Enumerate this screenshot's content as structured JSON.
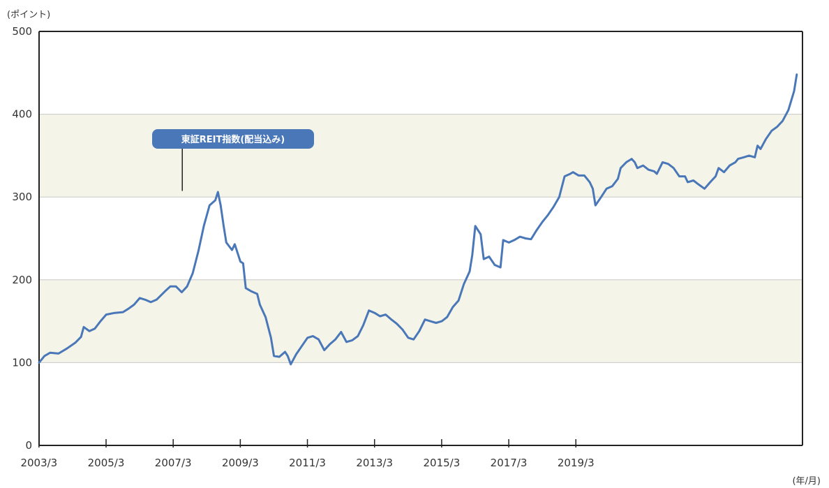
{
  "chart_data": {
    "type": "line",
    "y_unit_label": "(ポイント)",
    "x_unit_label": "(年/月)",
    "ylim": [
      0,
      500
    ],
    "y_ticks": [
      "0",
      "100",
      "200",
      "300",
      "400",
      "500"
    ],
    "x_ticks": [
      "2003/3",
      "2005/3",
      "2007/3",
      "2009/3",
      "2011/3",
      "2013/3",
      "2015/3",
      "2017/3",
      "2019/3"
    ],
    "grid": "horizontal",
    "band_color": "#f4f4e8",
    "line_color": "#4a77b8",
    "annotation": {
      "text": "東証REIT指数(配当込み)",
      "x": 2007.5,
      "y": 304
    },
    "series": [
      {
        "name": "東証REIT指数(配当込み)",
        "points": [
          [
            2003.17,
            100
          ],
          [
            2003.33,
            108
          ],
          [
            2003.5,
            112
          ],
          [
            2003.75,
            111
          ],
          [
            2004.0,
            117
          ],
          [
            2004.25,
            124
          ],
          [
            2004.42,
            131
          ],
          [
            2004.5,
            143
          ],
          [
            2004.67,
            138
          ],
          [
            2004.83,
            141
          ],
          [
            2005.0,
            150
          ],
          [
            2005.17,
            158
          ],
          [
            2005.42,
            160
          ],
          [
            2005.67,
            161
          ],
          [
            2005.83,
            165
          ],
          [
            2006.0,
            170
          ],
          [
            2006.17,
            178
          ],
          [
            2006.33,
            176
          ],
          [
            2006.5,
            173
          ],
          [
            2006.67,
            176
          ],
          [
            2006.92,
            186
          ],
          [
            2007.08,
            192
          ],
          [
            2007.25,
            192
          ],
          [
            2007.42,
            185
          ],
          [
            2007.58,
            192
          ],
          [
            2007.75,
            208
          ],
          [
            2007.92,
            235
          ],
          [
            2008.08,
            265
          ],
          [
            2008.25,
            290
          ],
          [
            2008.42,
            296
          ],
          [
            2008.5,
            306
          ],
          [
            2008.58,
            290
          ],
          [
            2008.67,
            265
          ],
          [
            2008.75,
            245
          ],
          [
            2008.92,
            236
          ],
          [
            2009.0,
            243
          ],
          [
            2009.17,
            222
          ],
          [
            2009.25,
            220
          ],
          [
            2009.33,
            190
          ],
          [
            2009.5,
            186
          ],
          [
            2009.67,
            183
          ],
          [
            2009.75,
            170
          ],
          [
            2009.92,
            155
          ],
          [
            2010.08,
            130
          ],
          [
            2010.17,
            108
          ],
          [
            2010.33,
            107
          ],
          [
            2010.5,
            113
          ],
          [
            2010.58,
            108
          ],
          [
            2010.67,
            98
          ],
          [
            2010.83,
            110
          ],
          [
            2011.0,
            120
          ],
          [
            2011.17,
            130
          ],
          [
            2011.33,
            132
          ],
          [
            2011.5,
            128
          ],
          [
            2011.67,
            115
          ],
          [
            2011.83,
            122
          ],
          [
            2012.0,
            128
          ],
          [
            2012.17,
            137
          ],
          [
            2012.33,
            125
          ],
          [
            2012.5,
            127
          ],
          [
            2012.67,
            132
          ],
          [
            2012.83,
            145
          ],
          [
            2013.0,
            163
          ],
          [
            2013.17,
            160
          ],
          [
            2013.33,
            156
          ],
          [
            2013.5,
            158
          ],
          [
            2013.67,
            152
          ],
          [
            2013.83,
            147
          ],
          [
            2014.0,
            140
          ],
          [
            2014.17,
            130
          ],
          [
            2014.33,
            128
          ],
          [
            2014.5,
            138
          ],
          [
            2014.67,
            152
          ],
          [
            2014.83,
            150
          ],
          [
            2015.0,
            148
          ],
          [
            2015.17,
            150
          ],
          [
            2015.33,
            155
          ],
          [
            2015.5,
            167
          ],
          [
            2015.67,
            175
          ],
          [
            2015.83,
            195
          ],
          [
            2016.0,
            210
          ],
          [
            2016.08,
            230
          ],
          [
            2016.17,
            265
          ],
          [
            2016.33,
            255
          ],
          [
            2016.42,
            225
          ],
          [
            2016.58,
            228
          ],
          [
            2016.75,
            218
          ],
          [
            2016.92,
            215
          ],
          [
            2017.0,
            248
          ],
          [
            2017.17,
            245
          ],
          [
            2017.33,
            248
          ],
          [
            2017.5,
            252
          ],
          [
            2017.67,
            250
          ],
          [
            2017.83,
            249
          ],
          [
            2018.0,
            260
          ],
          [
            2018.17,
            270
          ],
          [
            2018.33,
            278
          ],
          [
            2018.5,
            288
          ],
          [
            2018.67,
            300
          ],
          [
            2018.83,
            325
          ],
          [
            2019.0,
            328
          ],
          [
            2019.08,
            330
          ],
          [
            2019.25,
            326
          ],
          [
            2019.42,
            326
          ],
          [
            2019.58,
            318
          ],
          [
            2019.67,
            310
          ],
          [
            2019.75,
            290
          ],
          [
            2019.92,
            300
          ],
          [
            2020.08,
            310
          ],
          [
            2020.25,
            313
          ],
          [
            2020.42,
            322
          ],
          [
            2020.5,
            335
          ],
          [
            2020.67,
            342
          ],
          [
            2020.83,
            346
          ],
          [
            2020.92,
            342
          ],
          [
            2021.0,
            335
          ],
          [
            2021.17,
            338
          ],
          [
            2021.33,
            333
          ],
          [
            2021.5,
            331
          ],
          [
            2021.58,
            328
          ],
          [
            2021.75,
            342
          ],
          [
            2021.92,
            340
          ],
          [
            2022.08,
            335
          ],
          [
            2022.25,
            325
          ],
          [
            2022.42,
            325
          ],
          [
            2022.5,
            318
          ],
          [
            2022.67,
            320
          ],
          [
            2022.83,
            315
          ],
          [
            2023.0,
            310
          ],
          [
            2023.17,
            318
          ],
          [
            2023.33,
            325
          ],
          [
            2023.42,
            335
          ],
          [
            2023.58,
            330
          ],
          [
            2023.75,
            338
          ],
          [
            2023.92,
            342
          ],
          [
            2024.0,
            346
          ],
          [
            2024.17,
            348
          ],
          [
            2024.33,
            350
          ],
          [
            2024.5,
            348
          ],
          [
            2024.58,
            362
          ],
          [
            2024.67,
            358
          ],
          [
            2024.83,
            370
          ],
          [
            2025.0,
            380
          ],
          [
            2025.17,
            385
          ],
          [
            2025.33,
            392
          ],
          [
            2025.5,
            405
          ],
          [
            2025.67,
            428
          ],
          [
            2025.75,
            448
          ]
        ]
      }
    ]
  }
}
